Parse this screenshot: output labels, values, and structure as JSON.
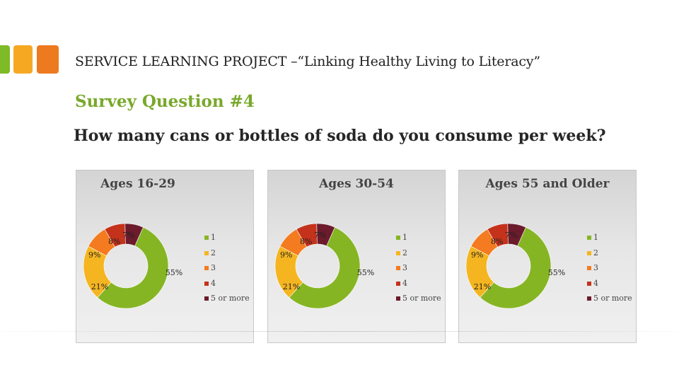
{
  "header": {
    "project_title": "SERVICE LEARNING PROJECT –“Linking Healthy Living to Literacy”",
    "survey_title": "Survey Question #4",
    "question": "How many cans or bottles of soda do you consume per week?"
  },
  "colors": {
    "accent_green": "#7fba27",
    "accent_yellow": "#f6a823",
    "accent_orange": "#ee7a1f",
    "survey_title": "#79a82b"
  },
  "chart_data": [
    {
      "type": "pie",
      "style": "donut",
      "title": "Ages 16-29",
      "categories": [
        "1",
        "2",
        "3",
        "4",
        "5 or more"
      ],
      "values": [
        55,
        21,
        9,
        8,
        7
      ],
      "labels": [
        "55%",
        "21%",
        "9%",
        "8%",
        "7%"
      ],
      "colors": [
        "#86b524",
        "#f5b520",
        "#f47b20",
        "#c4321b",
        "#6b1b2b"
      ],
      "legend_position": "right"
    },
    {
      "type": "pie",
      "style": "donut",
      "title": "Ages 30-54",
      "categories": [
        "1",
        "2",
        "3",
        "4",
        "5 or more"
      ],
      "values": [
        55,
        21,
        9,
        8,
        7
      ],
      "labels": [
        "55%",
        "21%",
        "9%",
        "8%",
        "7%"
      ],
      "colors": [
        "#86b524",
        "#f5b520",
        "#f47b20",
        "#c4321b",
        "#6b1b2b"
      ],
      "legend_position": "right"
    },
    {
      "type": "pie",
      "style": "donut",
      "title": "Ages 55 and Older",
      "categories": [
        "1",
        "2",
        "3",
        "4",
        "5 or more"
      ],
      "values": [
        55,
        21,
        9,
        8,
        7
      ],
      "labels": [
        "55%",
        "21%",
        "9%",
        "8%",
        "7%"
      ],
      "colors": [
        "#86b524",
        "#f5b520",
        "#f47b20",
        "#c4321b",
        "#6b1b2b"
      ],
      "legend_position": "right"
    }
  ]
}
